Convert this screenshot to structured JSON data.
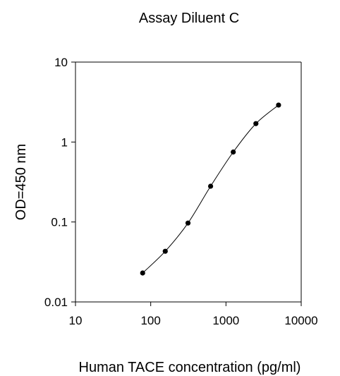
{
  "chart_data": {
    "type": "line",
    "title": "Assay Diluent C",
    "xlabel": "Human TACE concentration (pg/ml)",
    "ylabel": "OD=450 nm",
    "x_scale": "log",
    "y_scale": "log",
    "xlim": [
      10,
      10000
    ],
    "ylim": [
      0.01,
      10
    ],
    "x_ticks": [
      "10",
      "100",
      "1000",
      "10000"
    ],
    "y_ticks": [
      "0.01",
      "0.1",
      "1",
      "10"
    ],
    "grid": false,
    "legend": "none",
    "series": [
      {
        "x": [
          78.1,
          156,
          313,
          625,
          1250,
          2500,
          5000
        ],
        "y": [
          0.023,
          0.043,
          0.097,
          0.28,
          0.75,
          1.7,
          2.9
        ]
      }
    ],
    "colors": {
      "line": "#000000",
      "marker": "#000000",
      "axis": "#000000"
    }
  }
}
